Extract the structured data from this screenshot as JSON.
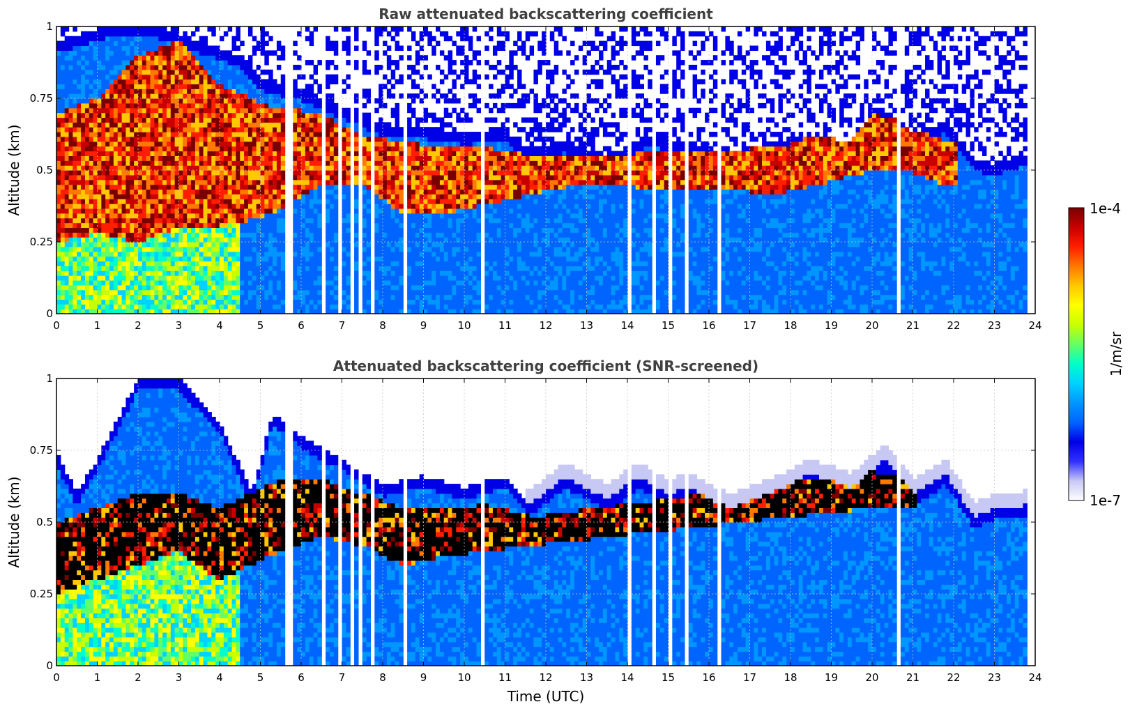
{
  "colormap": [
    "#ffffff",
    "#c8c8f5",
    "#3030ff",
    "#0000e6",
    "#0064ff",
    "#0096ff",
    "#00d2ff",
    "#00ffc8",
    "#64ff64",
    "#c8ff00",
    "#ffff00",
    "#ffc800",
    "#ff7800",
    "#ff1e00",
    "#c80000",
    "#780000"
  ],
  "chart_data": [
    {
      "type": "heatmap",
      "title": "Raw attenuated backscattering coefficient",
      "xlabel": "",
      "ylabel": "Altitude (km)",
      "xlim": [
        0,
        24
      ],
      "ylim": [
        0,
        1
      ],
      "x_ticks": [
        "0",
        "1",
        "2",
        "3",
        "4",
        "5",
        "6",
        "7",
        "8",
        "9",
        "10",
        "11",
        "12",
        "13",
        "14",
        "15",
        "16",
        "17",
        "18",
        "19",
        "20",
        "21",
        "22",
        "23",
        "24"
      ],
      "y_ticks": [
        "0",
        "0.25",
        "0.5",
        "0.75",
        "1"
      ],
      "grid": true,
      "data_end_hour": 23.8,
      "noise_above_layer": true,
      "layer_top_km": [
        [
          0,
          0.95
        ],
        [
          1.2,
          1.0
        ],
        [
          2.5,
          1.0
        ],
        [
          3.5,
          0.95
        ],
        [
          4.5,
          0.9
        ],
        [
          5.0,
          0.82
        ],
        [
          6.0,
          0.78
        ],
        [
          7.0,
          0.72
        ],
        [
          8.0,
          0.66
        ],
        [
          9.0,
          0.65
        ],
        [
          10.0,
          0.63
        ],
        [
          11.0,
          0.64
        ],
        [
          11.5,
          0.58
        ],
        [
          12.5,
          0.6
        ],
        [
          13.5,
          0.55
        ],
        [
          14.5,
          0.62
        ],
        [
          15.5,
          0.6
        ],
        [
          16.5,
          0.56
        ],
        [
          17.5,
          0.6
        ],
        [
          18.5,
          0.62
        ],
        [
          19.5,
          0.6
        ],
        [
          20.2,
          0.72
        ],
        [
          21.0,
          0.63
        ],
        [
          21.8,
          0.67
        ],
        [
          22.5,
          0.54
        ],
        [
          23.0,
          0.52
        ],
        [
          23.8,
          0.56
        ]
      ],
      "cloud_core_km": [
        [
          0,
          0.25,
          0.7
        ],
        [
          1.0,
          0.28,
          0.75
        ],
        [
          2.0,
          0.25,
          0.9
        ],
        [
          3.0,
          0.3,
          0.95
        ],
        [
          4.0,
          0.3,
          0.8
        ],
        [
          5.3,
          0.35,
          0.72
        ],
        [
          6.5,
          0.45,
          0.7
        ],
        [
          7.5,
          0.45,
          0.62
        ],
        [
          8.5,
          0.35,
          0.6
        ],
        [
          9.5,
          0.35,
          0.58
        ],
        [
          10.5,
          0.38,
          0.58
        ],
        [
          11.7,
          0.42,
          0.55
        ],
        [
          12.8,
          0.45,
          0.55
        ],
        [
          17.8,
          0.42,
          0.58
        ],
        [
          20.0,
          0.5,
          0.7
        ],
        [
          20.8,
          0.5,
          0.67
        ],
        [
          21.8,
          0.45,
          0.6
        ]
      ],
      "gap_hours": [
        5.65,
        5.72,
        6.55,
        6.95,
        7.25,
        7.45,
        7.7,
        8.55,
        10.45,
        14.05,
        14.6,
        14.65,
        15.05,
        15.2,
        15.5,
        16.25,
        16.9,
        20.7
      ]
    },
    {
      "type": "heatmap",
      "title": "Attenuated backscattering coefficient (SNR-screened)",
      "xlabel": "Time (UTC)",
      "ylabel": "Altitude (km)",
      "xlim": [
        0,
        24
      ],
      "ylim": [
        0,
        1
      ],
      "x_ticks": [
        "0",
        "1",
        "2",
        "3",
        "4",
        "5",
        "6",
        "7",
        "8",
        "9",
        "10",
        "11",
        "12",
        "13",
        "14",
        "15",
        "16",
        "17",
        "18",
        "19",
        "20",
        "21",
        "22",
        "23",
        "24"
      ],
      "y_ticks": [
        "0",
        "0.25",
        "0.5",
        "0.75",
        "1"
      ],
      "grid": true,
      "data_end_hour": 23.8,
      "noise_above_layer": false,
      "saturated_core_color": "#000000",
      "layer_top_km": [
        [
          0,
          0.74
        ],
        [
          0.5,
          0.6
        ],
        [
          1.0,
          0.72
        ],
        [
          2.0,
          1.0
        ],
        [
          3.0,
          1.0
        ],
        [
          4.0,
          0.85
        ],
        [
          4.8,
          0.6
        ],
        [
          5.3,
          0.88
        ],
        [
          6.0,
          0.8
        ],
        [
          7.0,
          0.72
        ],
        [
          8.0,
          0.63
        ],
        [
          9.0,
          0.66
        ],
        [
          10.0,
          0.62
        ],
        [
          11.0,
          0.66
        ],
        [
          11.6,
          0.56
        ],
        [
          12.5,
          0.66
        ],
        [
          13.5,
          0.58
        ],
        [
          14.3,
          0.66
        ],
        [
          15.0,
          0.6
        ],
        [
          15.5,
          0.62
        ],
        [
          16.5,
          0.55
        ],
        [
          17.5,
          0.6
        ],
        [
          18.5,
          0.67
        ],
        [
          19.5,
          0.62
        ],
        [
          20.3,
          0.72
        ],
        [
          21.0,
          0.6
        ],
        [
          21.8,
          0.67
        ],
        [
          22.5,
          0.52
        ],
        [
          23.0,
          0.55
        ],
        [
          23.8,
          0.56
        ]
      ],
      "cloud_core_km": [
        [
          0,
          0.25,
          0.5
        ],
        [
          1.0,
          0.3,
          0.55
        ],
        [
          2.0,
          0.35,
          0.6
        ],
        [
          3.0,
          0.4,
          0.6
        ],
        [
          4.0,
          0.3,
          0.55
        ],
        [
          5.5,
          0.4,
          0.65
        ],
        [
          6.5,
          0.45,
          0.65
        ],
        [
          7.5,
          0.42,
          0.6
        ],
        [
          8.5,
          0.35,
          0.55
        ],
        [
          9.5,
          0.38,
          0.55
        ],
        [
          10.5,
          0.4,
          0.56
        ],
        [
          11.7,
          0.42,
          0.52
        ],
        [
          20.0,
          0.55,
          0.68
        ],
        [
          20.8,
          0.55,
          0.65
        ]
      ],
      "gap_hours": [
        5.65,
        5.72,
        6.55,
        6.95,
        7.25,
        7.45,
        7.7,
        8.55,
        10.45,
        14.05,
        14.6,
        14.65,
        15.05,
        15.2,
        15.5,
        16.25,
        16.9,
        20.7
      ]
    }
  ],
  "colorbar": {
    "max_label": "1e-4",
    "min_label": "1e-7",
    "unit_label": "1/m/sr",
    "scale": "log"
  }
}
